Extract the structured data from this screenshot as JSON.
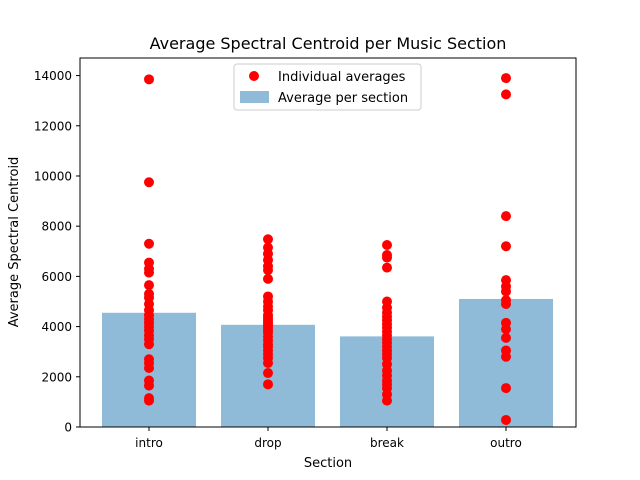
{
  "chart_data": {
    "type": "bar",
    "title": "Average Spectral Centroid per Music Section",
    "xlabel": "Section",
    "ylabel": "Average Spectral Centroid",
    "categories": [
      "intro",
      "drop",
      "break",
      "outro"
    ],
    "ylim": [
      0,
      14700
    ],
    "yticks": [
      0,
      2000,
      4000,
      6000,
      8000,
      10000,
      12000,
      14000
    ],
    "ytick_labels": [
      "0",
      "2000",
      "4000",
      "6000",
      "8000",
      "10000",
      "12000",
      "14000"
    ],
    "grid": false,
    "legend_position": "top-center",
    "series": [
      {
        "name": "Average per section",
        "kind": "bar",
        "color": "#8fbbd9",
        "values": [
          4550,
          4070,
          3610,
          5100
        ]
      },
      {
        "name": "Individual averages",
        "kind": "scatter",
        "color": "#ff0000",
        "points": [
          [
            13850,
            9750,
            7300,
            6550,
            6300,
            6150,
            5650,
            5300,
            5150,
            4900,
            4650,
            4450,
            4300,
            4150,
            4000,
            3850,
            3650,
            3500,
            3300,
            2700,
            2550,
            2350,
            1850,
            1650,
            1150,
            1050
          ],
          [
            7480,
            7150,
            6900,
            6650,
            6400,
            6250,
            5900,
            5200,
            5000,
            4800,
            4650,
            4450,
            4350,
            4250,
            4150,
            4050,
            3950,
            3850,
            3750,
            3600,
            3450,
            3300,
            3200,
            3050,
            2900,
            2750,
            2550,
            2150,
            1700
          ],
          [
            7250,
            6850,
            6750,
            6350,
            5000,
            4750,
            4550,
            4400,
            4250,
            4100,
            3950,
            3800,
            3650,
            3500,
            3350,
            3200,
            3050,
            2900,
            2750,
            2500,
            2250,
            2050,
            1850,
            1700,
            1550,
            1300,
            1050
          ],
          [
            13900,
            13250,
            8400,
            7200,
            5850,
            5600,
            5400,
            5050,
            4900,
            4150,
            3900,
            3550,
            3050,
            2800,
            1550,
            280
          ]
        ]
      }
    ]
  }
}
